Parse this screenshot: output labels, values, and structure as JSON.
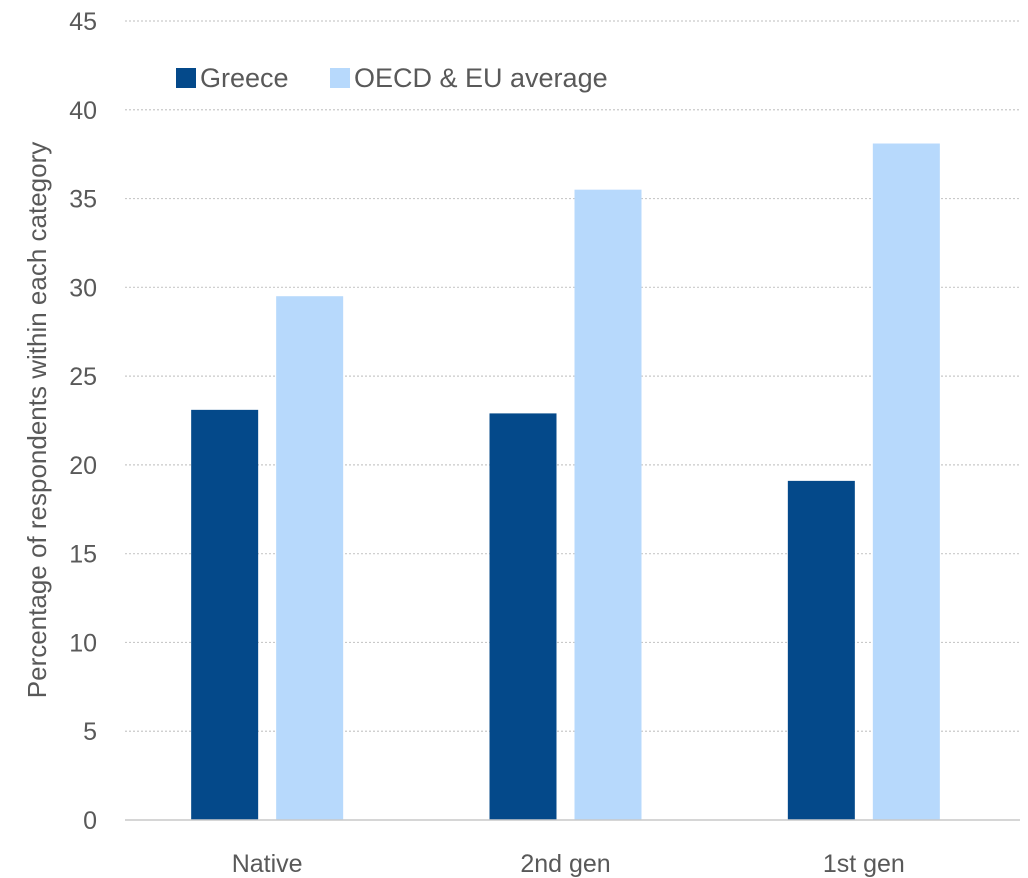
{
  "chart_data": {
    "type": "bar",
    "title": "",
    "xlabel": "",
    "ylabel": "Percentage of respondents within each category",
    "categories": [
      "Native",
      "2nd gen",
      "1st gen"
    ],
    "series": [
      {
        "name": "Greece",
        "color": "#04498a",
        "values": [
          23.1,
          22.9,
          19.1
        ]
      },
      {
        "name": "OECD & EU average",
        "color": "#b7d9fc",
        "values": [
          29.5,
          35.5,
          38.1
        ]
      }
    ],
    "ylim": [
      0,
      45
    ],
    "yticks": [
      0,
      5,
      10,
      15,
      20,
      25,
      30,
      35,
      40,
      45
    ],
    "grid": true,
    "legend_position": "top-left"
  }
}
